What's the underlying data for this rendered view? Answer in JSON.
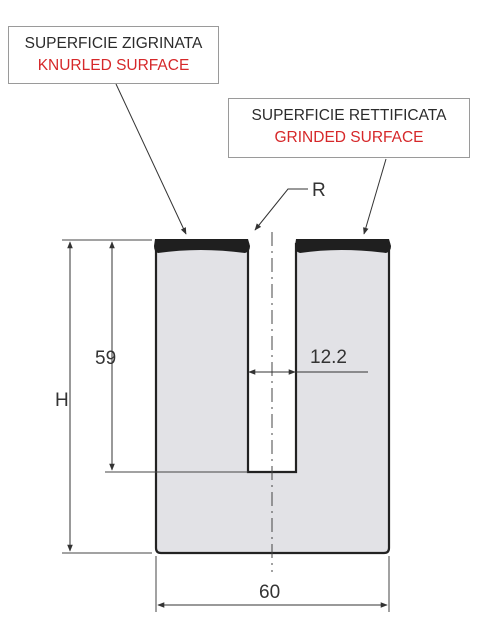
{
  "callouts": {
    "knurled": {
      "it": "SUPERFICIE ZIGRINATA",
      "en": "KNURLED SURFACE"
    },
    "grinded": {
      "it": "SUPERFICIE RETTIFICATA",
      "en": "GRINDED SURFACE"
    }
  },
  "dimensions": {
    "radius": "R",
    "groove_depth": "59",
    "height": "H",
    "groove_width": "12.2",
    "width": "60"
  },
  "colors": {
    "body_fill": "#e2e2e6",
    "outline": "#222222",
    "surface_band": "#1f1f1f",
    "english_text": "#d6282a"
  }
}
